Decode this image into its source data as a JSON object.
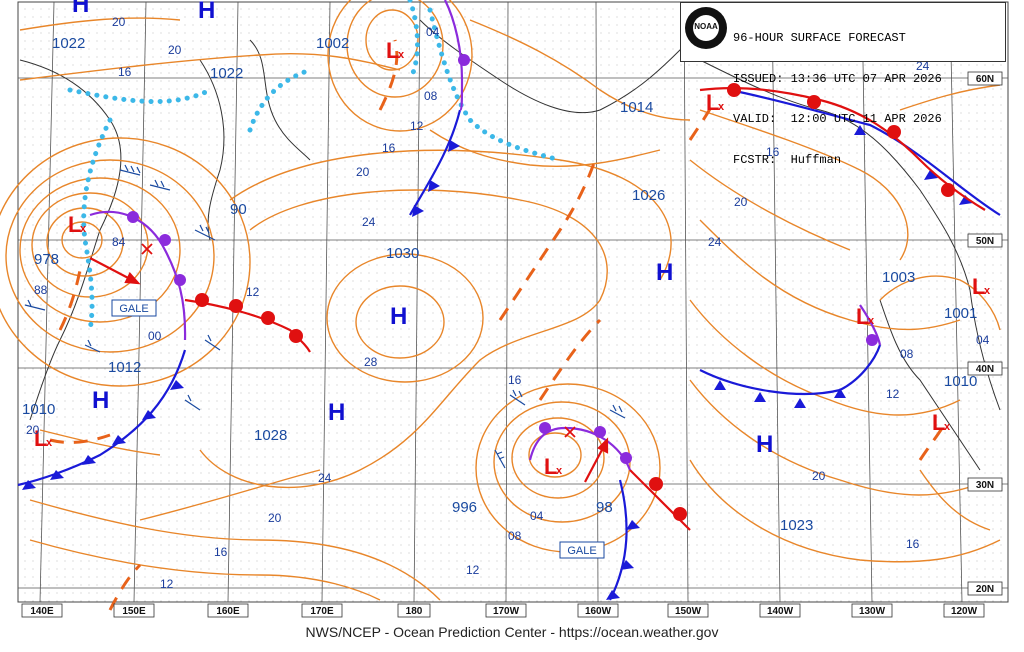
{
  "header": {
    "line1": "96-HOUR SURFACE FORECAST",
    "line2": "ISSUED: 13:36 UTC 07 APR 2026",
    "line3": "VALID:  12:00 UTC 11 APR 2026",
    "line4": "FCSTR:  Huffman",
    "logo_text": "NOAA"
  },
  "footer": "NWS/NCEP - Ocean Prediction Center - https://ocean.weather.gov",
  "longitude_labels": [
    "140E",
    "150E",
    "160E",
    "170E",
    "180",
    "170W",
    "160W",
    "150W",
    "140W",
    "130W",
    "120W"
  ],
  "latitude_labels": [
    "60N",
    "50N",
    "40N",
    "30N",
    "20N"
  ],
  "pressure_labels": [
    "1022",
    "1002",
    "1022",
    "1014",
    "1026",
    "90",
    "978",
    "1030",
    "1003",
    "1001",
    "1012",
    "1010",
    "1010",
    "1028",
    "996",
    "98",
    "1023"
  ],
  "isobar_labels": [
    "20",
    "20",
    "04",
    "16",
    "08",
    "12",
    "16",
    "20",
    "24",
    "84",
    "88",
    "12",
    "00",
    "28",
    "24",
    "20",
    "16",
    "12",
    "16",
    "24",
    "20",
    "16",
    "04",
    "08",
    "12",
    "04",
    "08",
    "12",
    "20",
    "16",
    "24",
    "20",
    "20"
  ],
  "gale_labels": [
    "GALE",
    "GALE"
  ],
  "colors": {
    "isobar": "#e8862a",
    "cold_front": "#1a1ad8",
    "warm_front": "#e01010",
    "occluded_front": "#8b2bdc",
    "ice_edge": "#3cb8e8",
    "trough": "#e8621a",
    "high": "#1010d0",
    "low": "#e01010"
  },
  "icons": [
    "noaa-logo",
    "high-pressure-symbol",
    "low-pressure-symbol",
    "wind-barb",
    "storm-track-arrow"
  ]
}
